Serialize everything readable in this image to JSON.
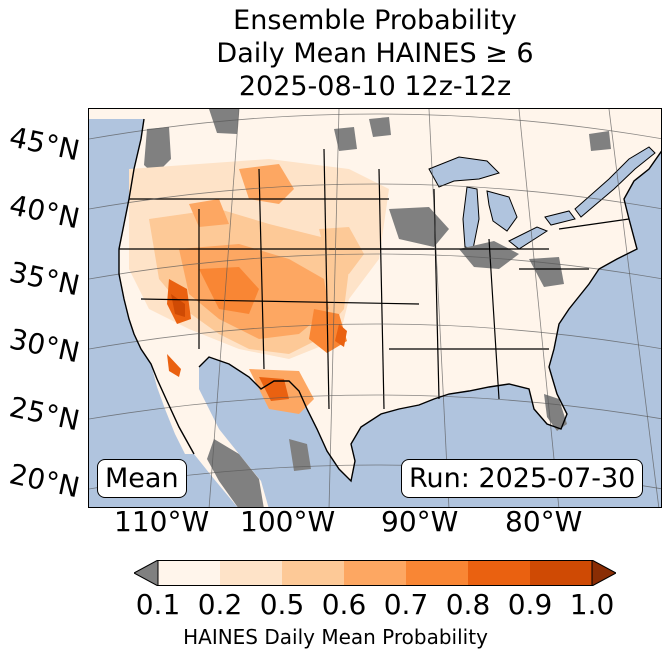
{
  "title_lines": [
    "Ensemble Probability",
    "Daily Mean HAINES ≥ 6",
    "2025-08-10 12z-12z"
  ],
  "lat_labels": [
    "45°N",
    "40°N",
    "35°N",
    "30°N",
    "25°N",
    "20°N"
  ],
  "lon_labels": [
    "110°W",
    "100°W",
    "90°W",
    "80°W"
  ],
  "left_box": "Mean",
  "right_box": "Run: 2025-07-30",
  "colorbar": {
    "ticks": [
      "0.1",
      "0.2",
      "0.5",
      "0.6",
      "0.7",
      "0.8",
      "0.9",
      "1.0"
    ],
    "colors": [
      "#fff5eb",
      "#fee3c8",
      "#fdc997",
      "#fda762",
      "#f98634",
      "#ea6110",
      "#cf4a04"
    ],
    "under_color": "#808080",
    "over_color": "#8a2d04",
    "label": "HAINES Daily Mean Probability"
  },
  "map_colors": {
    "ocean": "#b0c4de",
    "land": "#fff5eb",
    "missing": "#808080"
  }
}
